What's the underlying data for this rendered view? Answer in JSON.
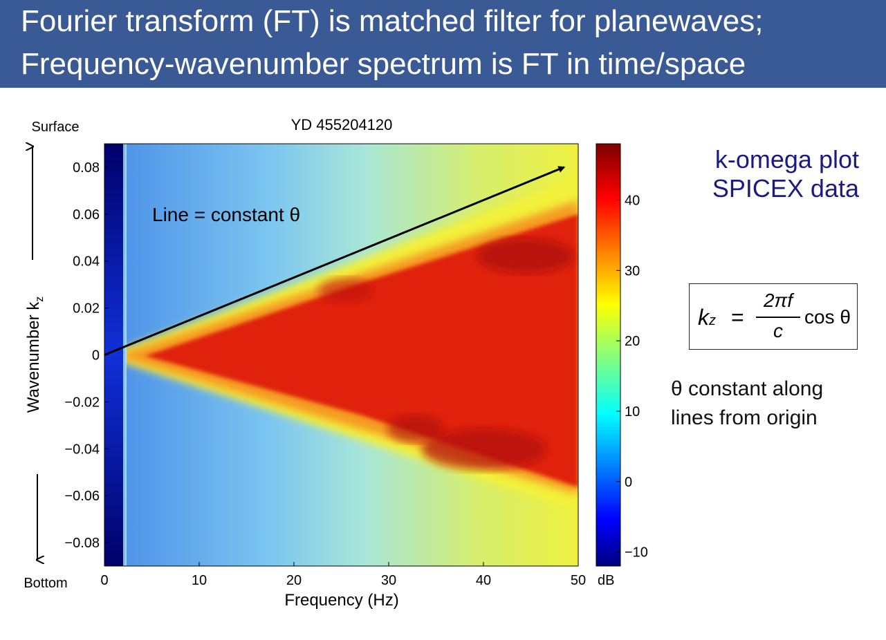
{
  "slide": {
    "title_line1": "Fourier transform (FT) is matched filter for planewaves;",
    "title_line2": "Frequency-wavenumber spectrum is FT in time/space",
    "side_title_line1": "k-omega plot",
    "side_title_line2": "SPICEX data",
    "formula": {
      "lhs_k": "k",
      "lhs_sub": "z",
      "equals": "=",
      "numerator": "2πf",
      "denominator": "c",
      "cos_text": "cos θ"
    },
    "note_line1": "θ constant along",
    "note_line2": "lines from origin",
    "colors": {
      "title_bg": "#3a5a96",
      "side_text": "#1a1a80"
    }
  },
  "chart_data": {
    "type": "heatmap",
    "title": "YD 455204120",
    "xlabel": "Frequency (Hz)",
    "ylabel": "Wavenumber k",
    "ylabel_sub": "z",
    "xlim": [
      0,
      50
    ],
    "ylim": [
      -0.09,
      0.09
    ],
    "xticks": [
      0,
      10,
      20,
      30,
      40,
      50
    ],
    "xtick_labels": [
      "0",
      "10",
      "20",
      "30",
      "40",
      "50"
    ],
    "yticks": [
      0.08,
      0.06,
      0.04,
      0.02,
      0,
      -0.02,
      -0.04,
      -0.06,
      -0.08
    ],
    "ytick_labels": [
      "0.08",
      "0.06",
      "0.04",
      "0.02",
      "0",
      "−0.02",
      "−0.04",
      "−0.06",
      "−0.08"
    ],
    "colorbar": {
      "unit": "dB",
      "range": [
        -12,
        48
      ],
      "ticks": [
        40,
        30,
        20,
        10,
        0,
        -10
      ],
      "tick_labels": [
        "40",
        "30",
        "20",
        "10",
        "0",
        "−10"
      ]
    },
    "arrow_line": {
      "from": [
        0,
        0
      ],
      "to": [
        48.5,
        0.08
      ]
    },
    "annotation": "Line = constant θ",
    "surface_label": "Surface",
    "bottom_label": "Bottom",
    "colormap": "jet"
  }
}
